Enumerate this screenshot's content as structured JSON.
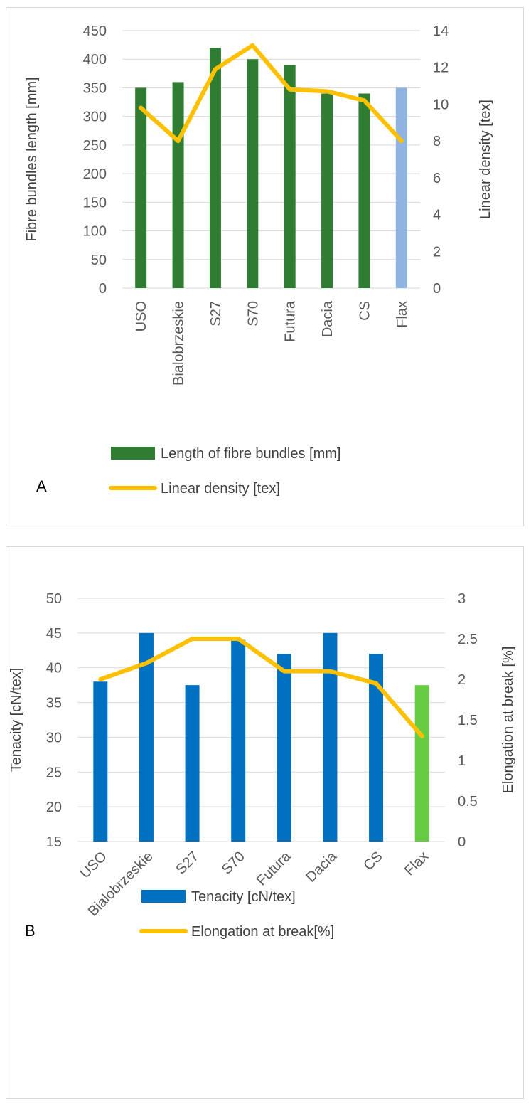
{
  "chart_data": [
    {
      "id": "A",
      "type": "bar+line",
      "panel_label": "A",
      "categories": [
        "USO",
        "Bialobrzeskie",
        "S27",
        "S70",
        "Futura",
        "Dacia",
        "CS",
        "Flax"
      ],
      "series": [
        {
          "name": "Length of fibre bundles [mm]",
          "type": "bar",
          "axis": "left",
          "values": [
            350,
            360,
            420,
            400,
            390,
            340,
            340,
            350
          ],
          "colors": [
            "#2e7d32",
            "#2e7d32",
            "#2e7d32",
            "#2e7d32",
            "#2e7d32",
            "#2e7d32",
            "#2e7d32",
            "#8fb4e3"
          ]
        },
        {
          "name": "Linear density [tex]",
          "type": "line",
          "axis": "right",
          "values": [
            9.8,
            8.0,
            11.9,
            13.2,
            10.8,
            10.7,
            10.2,
            8.0
          ],
          "color": "#ffc000"
        }
      ],
      "ylabel": "Fibre bundles length [mm]",
      "ylim": [
        0,
        450
      ],
      "yticks": [
        "0",
        "50",
        "100",
        "150",
        "200",
        "250",
        "300",
        "350",
        "400",
        "450"
      ],
      "y2label": "Linear density [tex]",
      "y2lim": [
        0,
        14
      ],
      "y2ticks": [
        "0",
        "2",
        "4",
        "6",
        "8",
        "10",
        "12",
        "14"
      ],
      "grid": true,
      "legend": "bottom"
    },
    {
      "id": "B",
      "type": "bar+line",
      "panel_label": "B",
      "categories": [
        "USO",
        "Bialobrzeskie",
        "S27",
        "S70",
        "Futura",
        "Dacia",
        "CS",
        "Flax"
      ],
      "series": [
        {
          "name": "Tenacity  [cN/tex]",
          "type": "bar",
          "axis": "left",
          "values": [
            38,
            45,
            37.5,
            44,
            42,
            45,
            42,
            37.5
          ],
          "colors": [
            "#0070c0",
            "#0070c0",
            "#0070c0",
            "#0070c0",
            "#0070c0",
            "#0070c0",
            "#0070c0",
            "#66cc44"
          ]
        },
        {
          "name": "Elongation at break[%]",
          "type": "line",
          "axis": "right",
          "values": [
            2.0,
            2.2,
            2.5,
            2.5,
            2.1,
            2.1,
            1.95,
            1.3
          ],
          "color": "#ffc000"
        }
      ],
      "ylabel": "Tenacity [cN/tex]",
      "ylim": [
        15,
        50
      ],
      "yticks": [
        "15",
        "20",
        "25",
        "30",
        "35",
        "40",
        "45",
        "50"
      ],
      "y2label": "Elongation at break [%]",
      "y2lim": [
        0,
        3
      ],
      "y2ticks": [
        "0",
        "0.5",
        "1",
        "1.5",
        "2",
        "2.5",
        "3"
      ],
      "grid": true,
      "legend": "bottom"
    }
  ]
}
